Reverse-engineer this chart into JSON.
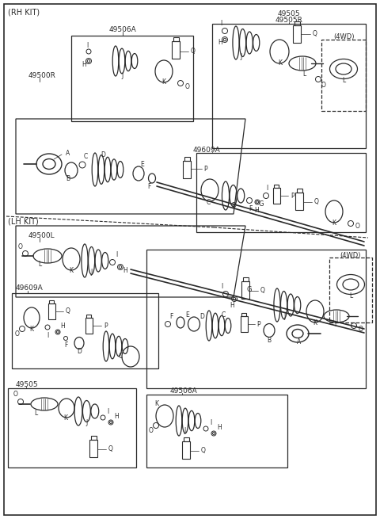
{
  "bg_color": "#f5f5f5",
  "line_color": "#2a2a2a",
  "text_color": "#2a2a2a",
  "border_color": "#2a2a2a",
  "labels": {
    "rh_kit": "(RH KIT)",
    "lh_kit": "(LH KIT)",
    "49506A_top": "49506A",
    "49505_top": "49505",
    "49505R_top": "49505R",
    "49500R": "49500R",
    "49609A_rh": "49609A",
    "49500L": "49500L",
    "49609A_lh": "49609A",
    "49505_bot": "49505",
    "49506A_bot": "49506A",
    "4WD_rh": "(4WD)",
    "4WD_lh": "(4WD)"
  }
}
